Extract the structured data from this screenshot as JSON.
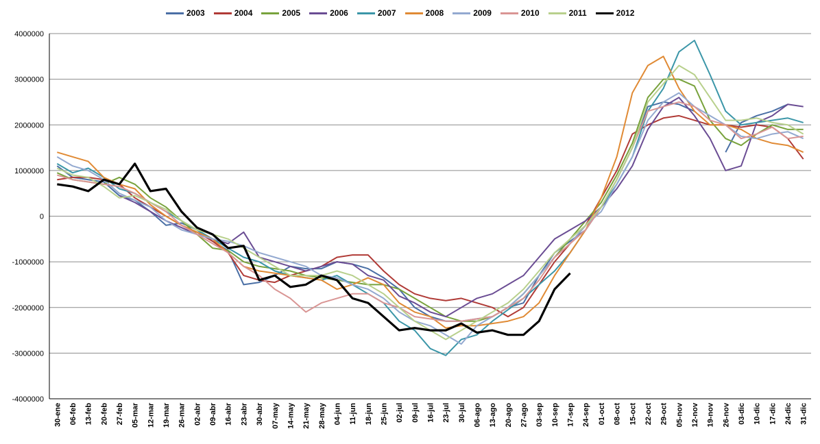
{
  "chart_data": {
    "type": "line",
    "title": "",
    "xlabel": "",
    "ylabel": "",
    "ylim": [
      -4000000,
      4000000
    ],
    "yticks": [
      "-4000000",
      "-3000000",
      "-2000000",
      "-1000000",
      "0",
      "1000000",
      "2000000",
      "3000000",
      "4000000"
    ],
    "x_tick_labels": [
      "30-ene",
      "06-feb",
      "13-feb",
      "20-feb",
      "27-feb",
      "05-mar",
      "12-mar",
      "19-mar",
      "26-mar",
      "02-abr",
      "09-abr",
      "16-abr",
      "23-abr",
      "30-abr",
      "07-may",
      "14-may",
      "21-may",
      "28-may",
      "04-jun",
      "11-jun",
      "18-jun",
      "25-jun",
      "02-jul",
      "09-jul",
      "16-jul",
      "23-jul",
      "30-jul",
      "06-ago",
      "13-ago",
      "20-ago",
      "27-ago",
      "03-sep",
      "10-sep",
      "17-sep",
      "24-sep",
      "01-oct",
      "08-oct",
      "15-oct",
      "22-oct",
      "29-oct",
      "05-nov",
      "12-nov",
      "19-nov",
      "26-nov",
      "03-dic",
      "10-dic",
      "17-dic",
      "24-dic",
      "31-dic"
    ],
    "grid": true,
    "legend_position": "top",
    "series": [
      {
        "name": "2003",
        "color": "#4a6fa5",
        "values": [
          1100000,
          850000,
          800000,
          750000,
          450000,
          350000,
          100000,
          -200000,
          -150000,
          -300000,
          -550000,
          -750000,
          -1500000,
          -1450000,
          -1300000,
          -1100000,
          -1150000,
          -1150000,
          -1000000,
          -1050000,
          -1150000,
          -1350000,
          -1600000,
          -2000000,
          -2200000,
          -2300000,
          -2300000,
          -2250000,
          -2200000,
          -2000000,
          -1900000,
          -1300000,
          -800000,
          -550000,
          -300000,
          200000,
          800000,
          1500000,
          2400000,
          2500000,
          2450000,
          2300000,
          null,
          1400000,
          2050000,
          2200000,
          2300000,
          2450000,
          null
        ]
      },
      {
        "name": "2004",
        "color": "#b03a36",
        "values": [
          800000,
          850000,
          850000,
          800000,
          700000,
          400000,
          200000,
          0,
          -200000,
          -350000,
          -550000,
          -800000,
          -1300000,
          -1400000,
          -1450000,
          -1300000,
          -1200000,
          -1100000,
          -900000,
          -850000,
          -850000,
          -1200000,
          -1500000,
          -1700000,
          -1800000,
          -1850000,
          -1800000,
          -1900000,
          -2000000,
          -2200000,
          -2000000,
          -1500000,
          -1000000,
          -600000,
          -200000,
          400000,
          1000000,
          1800000,
          2000000,
          2150000,
          2200000,
          2100000,
          2000000,
          2000000,
          1950000,
          2000000,
          1950000,
          1700000,
          1250000
        ]
      },
      {
        "name": "2005",
        "color": "#78a23c",
        "values": [
          950000,
          800000,
          750000,
          700000,
          850000,
          700000,
          400000,
          200000,
          -100000,
          -400000,
          -700000,
          -750000,
          -1000000,
          -1100000,
          -1150000,
          -1200000,
          -1300000,
          -1350000,
          -1400000,
          -1450000,
          -1500000,
          -1500000,
          -1600000,
          -1800000,
          -2000000,
          -2200000,
          -2300000,
          -2300000,
          -2200000,
          -2000000,
          -1700000,
          -1300000,
          -900000,
          -500000,
          -100000,
          300000,
          900000,
          1600000,
          2600000,
          3000000,
          3000000,
          2850000,
          2100000,
          1700000,
          1550000,
          1800000,
          2000000,
          1900000,
          1900000
        ]
      },
      {
        "name": "2006",
        "color": "#6a4c93",
        "values": [
          null,
          null,
          null,
          null,
          450000,
          300000,
          100000,
          -100000,
          -250000,
          -400000,
          -500000,
          -600000,
          -350000,
          -900000,
          -1000000,
          -1100000,
          -1200000,
          -1100000,
          -1000000,
          -1050000,
          -1300000,
          -1400000,
          -1750000,
          -1900000,
          -2100000,
          -2200000,
          -2000000,
          -1800000,
          -1700000,
          -1500000,
          -1300000,
          -900000,
          -500000,
          -300000,
          -100000,
          200000,
          600000,
          1100000,
          1900000,
          2400000,
          2600000,
          2200000,
          1700000,
          1000000,
          1100000,
          2050000,
          2200000,
          2450000,
          2400000
        ]
      },
      {
        "name": "2007",
        "color": "#3b96a8",
        "values": [
          1150000,
          950000,
          1050000,
          850000,
          600000,
          500000,
          300000,
          100000,
          -100000,
          -300000,
          -500000,
          -700000,
          -900000,
          -1000000,
          -1200000,
          -1300000,
          -1350000,
          -1400000,
          -1300000,
          -1500000,
          -1700000,
          -1900000,
          -2300000,
          -2500000,
          -2900000,
          -3050000,
          -2700000,
          -2600000,
          -2300000,
          -2050000,
          -1800000,
          -1500000,
          -1200000,
          -800000,
          -300000,
          200000,
          700000,
          1300000,
          2300000,
          2800000,
          3600000,
          3850000,
          3100000,
          2300000,
          2000000,
          2050000,
          2100000,
          2150000,
          2050000
        ]
      },
      {
        "name": "2008",
        "color": "#e08a34",
        "values": [
          1400000,
          1300000,
          1200000,
          850000,
          700000,
          600000,
          250000,
          0,
          -200000,
          -350000,
          -500000,
          -800000,
          -1100000,
          -1200000,
          -1250000,
          -1300000,
          -1350000,
          -1400000,
          -1600000,
          -1500000,
          -1350000,
          -1500000,
          -1900000,
          -2100000,
          -2200000,
          -2450000,
          -2400000,
          -2400000,
          -2350000,
          -2300000,
          -2200000,
          -1900000,
          -1300000,
          -800000,
          -300000,
          400000,
          1300000,
          2700000,
          3300000,
          3500000,
          2800000,
          2300000,
          2000000,
          2000000,
          1900000,
          1700000,
          1600000,
          1550000,
          1400000
        ]
      },
      {
        "name": "2009",
        "color": "#93a9d0",
        "values": [
          1300000,
          1100000,
          1000000,
          800000,
          500000,
          350000,
          200000,
          -100000,
          -300000,
          -400000,
          -500000,
          -550000,
          -650000,
          -800000,
          -900000,
          -1000000,
          -1100000,
          -1300000,
          -1350000,
          -1500000,
          -1600000,
          -1800000,
          -2100000,
          -2300000,
          -2400000,
          -2600000,
          -2800000,
          -2400000,
          -2200000,
          -2000000,
          -1700000,
          -1300000,
          -900000,
          -600000,
          -200000,
          100000,
          700000,
          1300000,
          2100000,
          2500000,
          2700000,
          2400000,
          2200000,
          2000000,
          1750000,
          1700000,
          1800000,
          1850000,
          1700000
        ]
      },
      {
        "name": "2010",
        "color": "#d99594",
        "values": [
          900000,
          800000,
          750000,
          700000,
          650000,
          500000,
          300000,
          100000,
          -200000,
          -400000,
          -600000,
          -800000,
          -1100000,
          -1300000,
          -1600000,
          -1800000,
          -2100000,
          -1900000,
          -1800000,
          -1700000,
          -1700000,
          -1900000,
          -2000000,
          -2200000,
          -2250000,
          -2300000,
          -2300000,
          -2250000,
          -2200000,
          -2000000,
          -1800000,
          -1400000,
          -900000,
          -600000,
          -300000,
          200000,
          800000,
          1500000,
          2300000,
          2400000,
          2500000,
          2400000,
          2100000,
          2000000,
          1700000,
          1800000,
          1950000,
          1700000,
          1750000
        ]
      },
      {
        "name": "2011",
        "color": "#b8d08c",
        "values": [
          1050000,
          900000,
          850000,
          650000,
          400000,
          450000,
          300000,
          150000,
          -100000,
          -300000,
          -400000,
          -500000,
          -700000,
          -900000,
          -1100000,
          -1300000,
          -1300000,
          -1300000,
          -1200000,
          -1300000,
          -1500000,
          -1700000,
          -2000000,
          -2300000,
          -2500000,
          -2700000,
          -2500000,
          -2300000,
          -2100000,
          -1900000,
          -1600000,
          -1200000,
          -800000,
          -500000,
          -200000,
          200000,
          800000,
          1500000,
          2500000,
          2900000,
          3300000,
          3100000,
          2600000,
          2100000,
          2100000,
          2150000,
          2050000,
          2000000,
          1800000
        ]
      },
      {
        "name": "2012",
        "color": "#000000",
        "values": [
          700000,
          650000,
          550000,
          800000,
          700000,
          1150000,
          550000,
          600000,
          100000,
          -250000,
          -400000,
          -700000,
          -650000,
          -1400000,
          -1300000,
          -1550000,
          -1500000,
          -1300000,
          -1400000,
          -1800000,
          -1900000,
          -2200000,
          -2500000,
          -2450000,
          -2500000,
          -2500000,
          -2350000,
          -2550000,
          -2500000,
          -2600000,
          -2600000,
          -2300000,
          -1600000,
          -1250000,
          null,
          null,
          null,
          null,
          null,
          null,
          null,
          null,
          null,
          null,
          null,
          null,
          null,
          null,
          null
        ]
      }
    ]
  }
}
